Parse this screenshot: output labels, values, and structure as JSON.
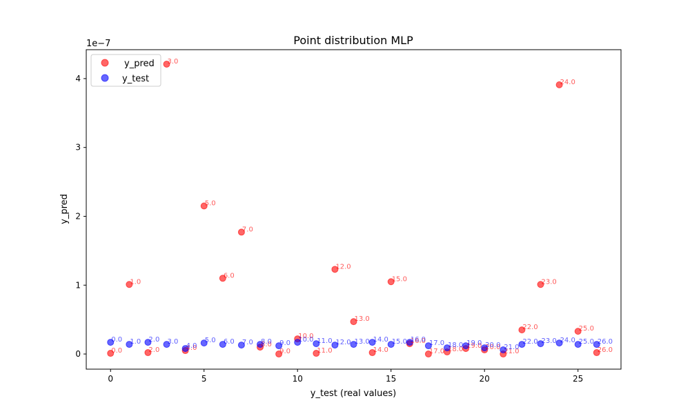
{
  "chart_data": {
    "type": "scatter",
    "title": "Point distribution MLP",
    "xlabel": "y_test (real values)",
    "ylabel": "y_pred",
    "y_scale_label": "1e−7",
    "xlim": [
      -1.3,
      27.3
    ],
    "ylim": [
      -0.22,
      4.42
    ],
    "x_ticks": [
      0,
      5,
      10,
      15,
      20,
      25
    ],
    "x_tick_labels": [
      "0",
      "5",
      "10",
      "15",
      "20",
      "25"
    ],
    "y_ticks": [
      0,
      1,
      2,
      3,
      4
    ],
    "y_tick_labels": [
      "0",
      "1",
      "2",
      "3",
      "4"
    ],
    "grid": false,
    "legend_position": "top-left",
    "colors": {
      "y_pred": "#ff0000",
      "y_test": "#0000ff"
    },
    "series": [
      {
        "name": "y_pred",
        "color": "#ff0000",
        "x": [
          0,
          1,
          2,
          3,
          4,
          5,
          6,
          7,
          8,
          9,
          10,
          11,
          12,
          13,
          14,
          15,
          16,
          17,
          18,
          19,
          20,
          21,
          22,
          23,
          24,
          25,
          26
        ],
        "y": [
          0.01,
          1.01,
          0.02,
          4.21,
          0.05,
          2.15,
          1.1,
          1.77,
          0.1,
          0.0,
          0.22,
          0.01,
          1.23,
          0.47,
          0.02,
          1.05,
          0.15,
          0.0,
          0.03,
          0.08,
          0.06,
          0.0,
          0.35,
          1.01,
          3.91,
          0.33,
          0.02
        ],
        "point_labels": [
          "0.0",
          "1.0",
          "2.0",
          "3.0",
          "4.0",
          "5.0",
          "6.0",
          "7.0",
          "8.0",
          "9.0",
          "10.0",
          "11.0",
          "12.0",
          "13.0",
          "14.0",
          "15.0",
          "16.0",
          "17.0",
          "18.0",
          "19.0",
          "20.0",
          "21.0",
          "22.0",
          "23.0",
          "24.0",
          "25.0",
          "26.0"
        ]
      },
      {
        "name": "y_test",
        "color": "#0000ff",
        "x": [
          0,
          1,
          2,
          3,
          4,
          5,
          6,
          7,
          8,
          9,
          10,
          11,
          12,
          13,
          14,
          15,
          16,
          17,
          18,
          19,
          20,
          21,
          22,
          23,
          24,
          25,
          26
        ],
        "y": [
          0.17,
          0.14,
          0.17,
          0.14,
          0.08,
          0.16,
          0.14,
          0.13,
          0.14,
          0.12,
          0.17,
          0.15,
          0.13,
          0.14,
          0.17,
          0.14,
          0.17,
          0.12,
          0.09,
          0.12,
          0.09,
          0.06,
          0.14,
          0.15,
          0.16,
          0.14,
          0.14
        ],
        "point_labels": [
          "0.0",
          "1.0",
          "2.0",
          "3.0",
          "4.0",
          "5.0",
          "6.0",
          "7.0",
          "8.0",
          "9.0",
          "10.0",
          "11.0",
          "12.0",
          "13.0",
          "14.0",
          "15.0",
          "16.0",
          "17.0",
          "18.0",
          "19.0",
          "20.0",
          "21.0",
          "22.0",
          "23.0",
          "24.0",
          "25.0",
          "26.0"
        ]
      }
    ]
  }
}
